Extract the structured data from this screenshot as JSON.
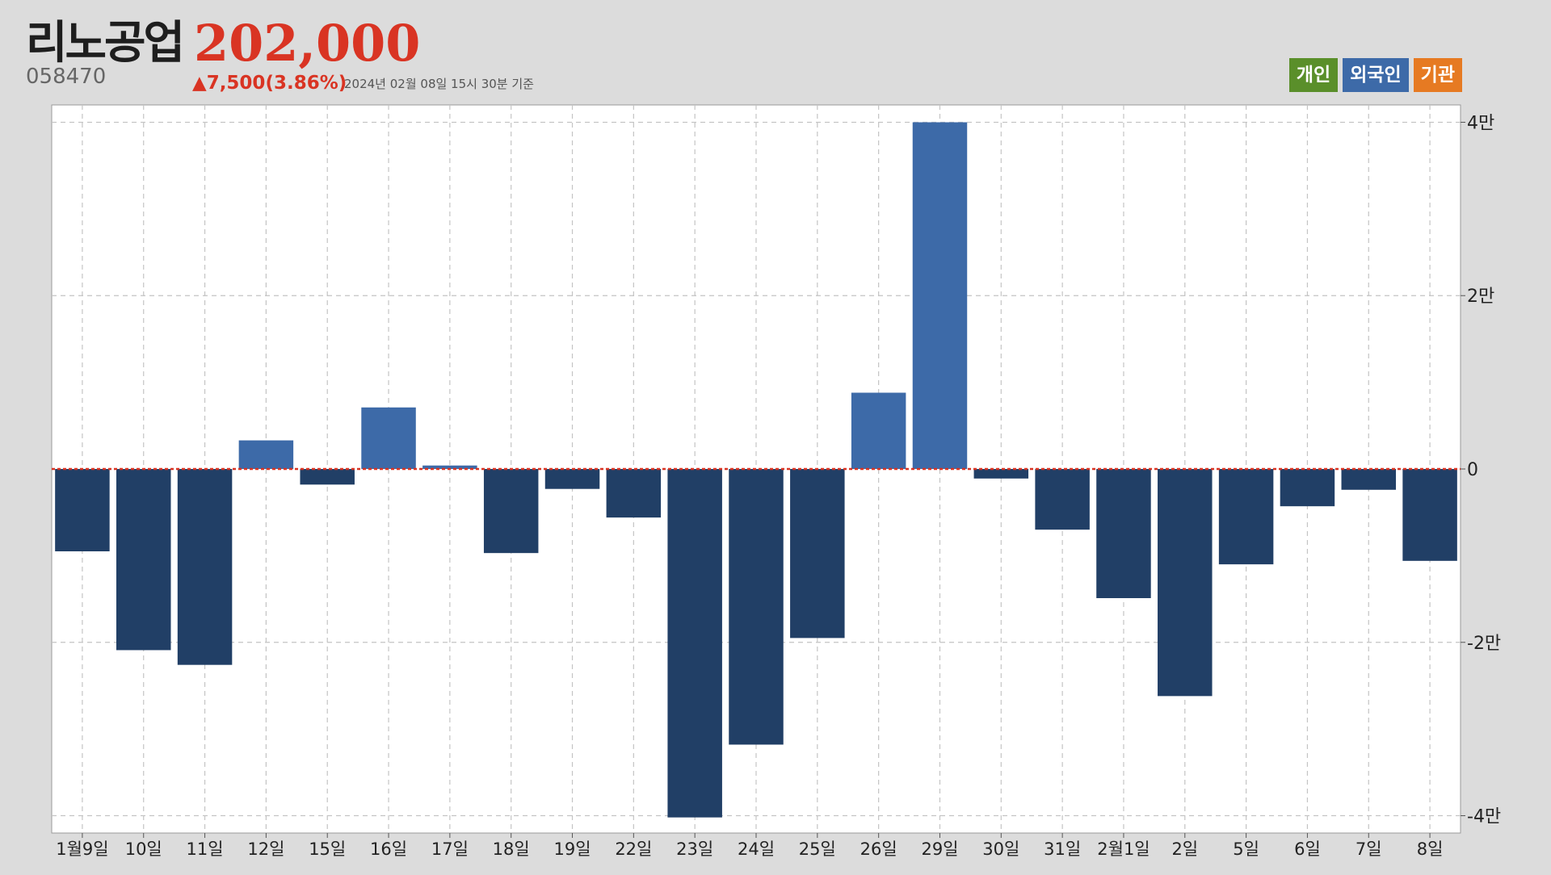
{
  "header": {
    "stock_name": "리노공업",
    "price": "202,000",
    "code": "058470",
    "change": "▲7,500(3.86%)",
    "timestamp": "2024년 02월 08일 15시 30분 기준"
  },
  "legend": [
    {
      "label": "개인",
      "color": "#5a8f2a"
    },
    {
      "label": "외국인",
      "color": "#3d6aa8"
    },
    {
      "label": "기관",
      "color": "#e67a22"
    }
  ],
  "colors": {
    "positive_bar": "#3d6aa8",
    "negative_bar": "#213f66",
    "zero_line": "#d93423",
    "grid": "#c4c4c4",
    "accent": "#d93423"
  },
  "chart_data": {
    "type": "bar",
    "series": [
      {
        "name": "외국인",
        "values": [
          -9500,
          -20900,
          -22600,
          3300,
          -1800,
          7100,
          400,
          -9700,
          -2300,
          -5600,
          -40200,
          -31800,
          -19500,
          8800,
          40000,
          -1100,
          -7000,
          -14900,
          -26200,
          -11000,
          -4300,
          -2400,
          -10600
        ]
      }
    ],
    "categories": [
      "1월9일",
      "10일",
      "11일",
      "12일",
      "15일",
      "16일",
      "17일",
      "18일",
      "19일",
      "22일",
      "23일",
      "24일",
      "25일",
      "26일",
      "29일",
      "30일",
      "31일",
      "2월1일",
      "2일",
      "5일",
      "6일",
      "7일",
      "8일"
    ],
    "ylim": [
      -42000,
      42000
    ],
    "yticks": [
      {
        "value": 40000,
        "label": "4만"
      },
      {
        "value": 20000,
        "label": "2만"
      },
      {
        "value": 0,
        "label": "0"
      },
      {
        "value": -20000,
        "label": "-2만"
      },
      {
        "value": -40000,
        "label": "-4만"
      }
    ],
    "grid": true,
    "y_axis_position": "right",
    "legend_position": "top-right"
  }
}
